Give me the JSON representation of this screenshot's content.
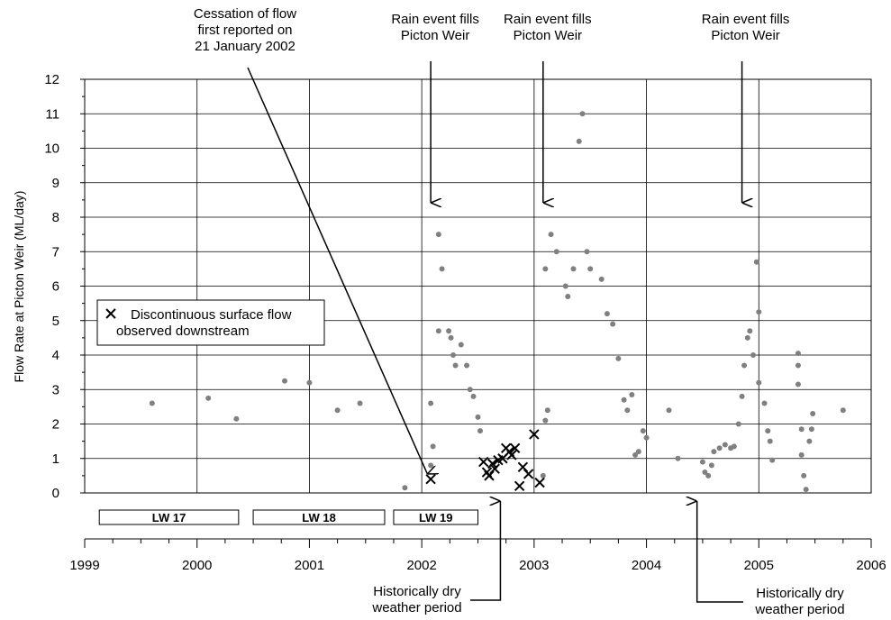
{
  "chart_data": {
    "type": "scatter",
    "title": "",
    "ylabel": "Flow Rate at Picton Weir (ML/day)",
    "xlabel": "",
    "xlim": [
      1999,
      2006
    ],
    "ylim": [
      0,
      12
    ],
    "y_ticks": [
      0,
      1,
      2,
      3,
      4,
      5,
      6,
      7,
      8,
      9,
      10,
      11,
      12
    ],
    "x_ticks": [
      1999,
      2000,
      2001,
      2002,
      2003,
      2004,
      2005,
      2006
    ],
    "x_tick_labels": [
      "1999",
      "2000",
      "2001",
      "2002",
      "2003",
      "2004",
      "2005",
      "2006"
    ],
    "grid": true,
    "legend_position": "left",
    "series": [
      {
        "name": "",
        "marker": "circle",
        "color": "#808080",
        "points": [
          [
            2002.08,
            2.6
          ],
          [
            2002.1,
            1.35
          ],
          [
            2002.15,
            7.5
          ],
          [
            2002.15,
            4.7
          ],
          [
            2002.18,
            6.5
          ],
          [
            2002.24,
            4.7
          ],
          [
            2002.26,
            4.5
          ],
          [
            2002.28,
            4.0
          ],
          [
            2002.3,
            3.7
          ],
          [
            2002.35,
            4.3
          ],
          [
            2002.4,
            3.7
          ],
          [
            2002.43,
            3.0
          ],
          [
            2002.46,
            2.8
          ],
          [
            2002.5,
            2.2
          ],
          [
            2002.52,
            1.8
          ],
          [
            1999.6,
            2.6
          ],
          [
            2000.1,
            2.75
          ],
          [
            2000.35,
            2.15
          ],
          [
            2000.78,
            3.25
          ],
          [
            2001.0,
            3.2
          ],
          [
            2001.25,
            2.4
          ],
          [
            2001.45,
            2.6
          ],
          [
            2001.85,
            0.15
          ],
          [
            2002.08,
            0.8
          ],
          [
            2003.1,
            6.5
          ],
          [
            2003.15,
            7.5
          ],
          [
            2003.2,
            7.0
          ],
          [
            2003.28,
            6.0
          ],
          [
            2003.3,
            5.7
          ],
          [
            2003.35,
            6.5
          ],
          [
            2003.4,
            10.2
          ],
          [
            2003.43,
            11.0
          ],
          [
            2003.47,
            7.0
          ],
          [
            2003.5,
            6.5
          ],
          [
            2003.6,
            6.2
          ],
          [
            2003.65,
            5.2
          ],
          [
            2003.7,
            4.9
          ],
          [
            2003.75,
            3.9
          ],
          [
            2003.8,
            2.7
          ],
          [
            2003.83,
            2.4
          ],
          [
            2003.87,
            2.85
          ],
          [
            2003.9,
            1.1
          ],
          [
            2003.93,
            1.2
          ],
          [
            2003.97,
            1.8
          ],
          [
            2004.0,
            1.6
          ],
          [
            2003.08,
            0.5
          ],
          [
            2003.1,
            2.1
          ],
          [
            2003.12,
            2.4
          ],
          [
            2004.2,
            2.4
          ],
          [
            2004.28,
            1.0
          ],
          [
            2004.5,
            0.9
          ],
          [
            2004.52,
            0.6
          ],
          [
            2004.55,
            0.5
          ],
          [
            2004.58,
            0.8
          ],
          [
            2004.6,
            1.2
          ],
          [
            2004.65,
            1.3
          ],
          [
            2004.7,
            1.4
          ],
          [
            2004.75,
            1.3
          ],
          [
            2004.78,
            1.35
          ],
          [
            2004.82,
            2.0
          ],
          [
            2004.85,
            2.8
          ],
          [
            2004.87,
            3.7
          ],
          [
            2004.9,
            4.5
          ],
          [
            2004.92,
            4.7
          ],
          [
            2004.95,
            4.0
          ],
          [
            2004.98,
            6.7
          ],
          [
            2005.0,
            5.25
          ],
          [
            2005.0,
            3.2
          ],
          [
            2005.05,
            2.6
          ],
          [
            2005.08,
            1.8
          ],
          [
            2005.1,
            1.5
          ],
          [
            2005.12,
            0.95
          ],
          [
            2005.35,
            4.05
          ],
          [
            2005.35,
            3.7
          ],
          [
            2005.35,
            3.15
          ],
          [
            2005.38,
            1.85
          ],
          [
            2005.38,
            1.1
          ],
          [
            2005.4,
            0.5
          ],
          [
            2005.42,
            0.1
          ],
          [
            2005.45,
            1.5
          ],
          [
            2005.47,
            1.85
          ],
          [
            2005.48,
            2.3
          ],
          [
            2005.75,
            2.4
          ]
        ]
      },
      {
        "name": "Discontinuous surface flow observed downstream",
        "marker": "x",
        "color": "#000000",
        "points": [
          [
            2002.08,
            0.4
          ],
          [
            2002.55,
            0.9
          ],
          [
            2002.58,
            0.6
          ],
          [
            2002.6,
            0.5
          ],
          [
            2002.63,
            0.85
          ],
          [
            2002.65,
            0.7
          ],
          [
            2002.68,
            0.95
          ],
          [
            2002.72,
            1.0
          ],
          [
            2002.75,
            1.3
          ],
          [
            2002.78,
            1.2
          ],
          [
            2002.8,
            1.1
          ],
          [
            2002.83,
            1.3
          ],
          [
            2002.87,
            0.2
          ],
          [
            2002.9,
            0.75
          ],
          [
            2002.95,
            0.55
          ],
          [
            2003.0,
            1.7
          ],
          [
            2003.05,
            0.3
          ]
        ]
      }
    ],
    "longwall_bars": [
      {
        "label": "LW 17",
        "start": 1999.13,
        "end": 2000.37
      },
      {
        "label": "LW 18",
        "start": 2000.5,
        "end": 2001.67
      },
      {
        "label": "LW 19",
        "start": 2001.75,
        "end": 2002.5
      }
    ],
    "annotations": [
      {
        "lines": [
          "Cessation of flow",
          "first reported on",
          "21 January 2002"
        ],
        "type": "arrow-diagonal"
      },
      {
        "lines": [
          "Rain event fills",
          "Picton Weir"
        ],
        "type": "arrow-down",
        "x": 2002.08
      },
      {
        "lines": [
          "Rain event fills",
          "Picton Weir"
        ],
        "type": "arrow-down",
        "x": 2003.08
      },
      {
        "lines": [
          "Rain event fills",
          "Picton Weir"
        ],
        "type": "arrow-down",
        "x": 2004.85
      },
      {
        "lines": [
          "Historically dry",
          "weather period"
        ],
        "type": "arrow-up",
        "x": 2002.7
      },
      {
        "lines": [
          "Historically dry",
          "weather period"
        ],
        "type": "arrow-up",
        "x": 2004.45
      }
    ]
  }
}
